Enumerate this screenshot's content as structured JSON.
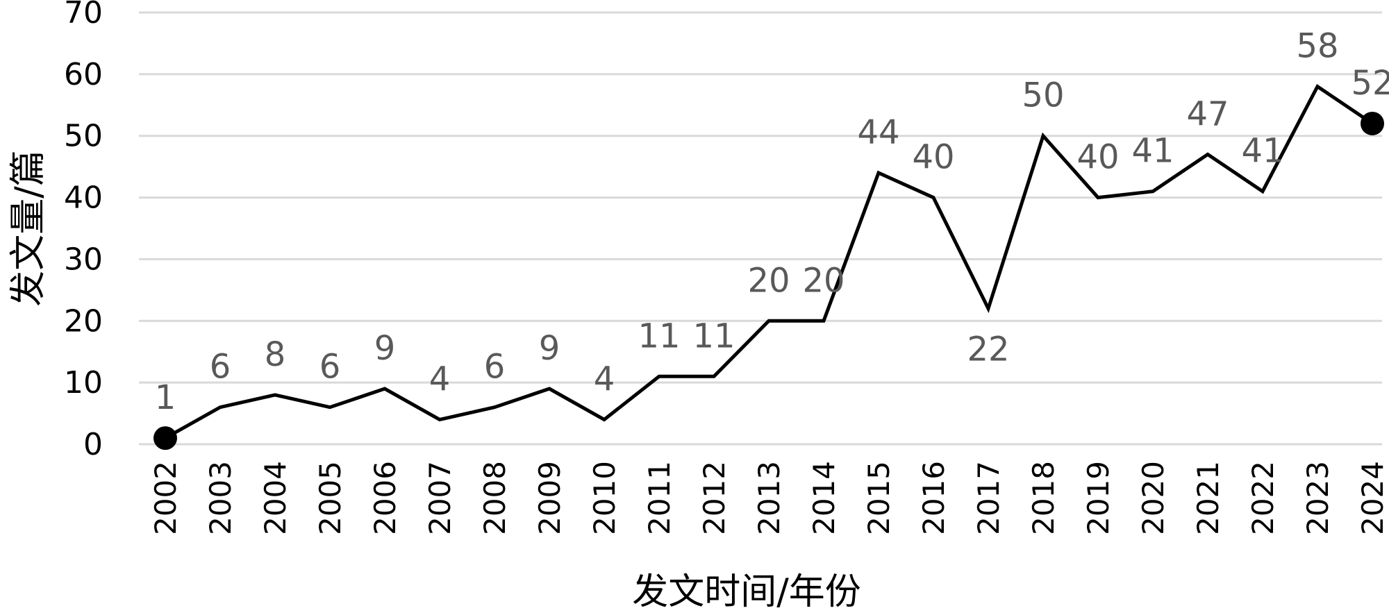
{
  "chart_data": {
    "type": "line",
    "title": "",
    "xlabel": "发文时间/年份",
    "ylabel": "发文量/篇",
    "ylim": [
      0,
      70
    ],
    "yticks": [
      "0",
      "10",
      "20",
      "30",
      "40",
      "50",
      "60",
      "70"
    ],
    "grid": "horizontal",
    "categories": [
      "2002",
      "2003",
      "2004",
      "2005",
      "2006",
      "2007",
      "2008",
      "2009",
      "2010",
      "2011",
      "2012",
      "2013",
      "2014",
      "2015",
      "2016",
      "2017",
      "2018",
      "2019",
      "2020",
      "2021",
      "2022",
      "2023",
      "2024"
    ],
    "values": [
      1,
      6,
      8,
      6,
      9,
      4,
      6,
      9,
      4,
      11,
      11,
      20,
      20,
      44,
      40,
      22,
      50,
      40,
      41,
      47,
      41,
      58,
      52
    ],
    "data_labels": [
      "1",
      "6",
      "8",
      "6",
      "9",
      "4",
      "6",
      "9",
      "4",
      "11",
      "11",
      "20",
      "20",
      "44",
      "40",
      "22",
      "50",
      "40",
      "41",
      "47",
      "41",
      "58",
      "52"
    ],
    "markers": "first-and-last",
    "line_color": "#000000",
    "label_color": "#595959",
    "grid_color": "#d9d9d9"
  }
}
